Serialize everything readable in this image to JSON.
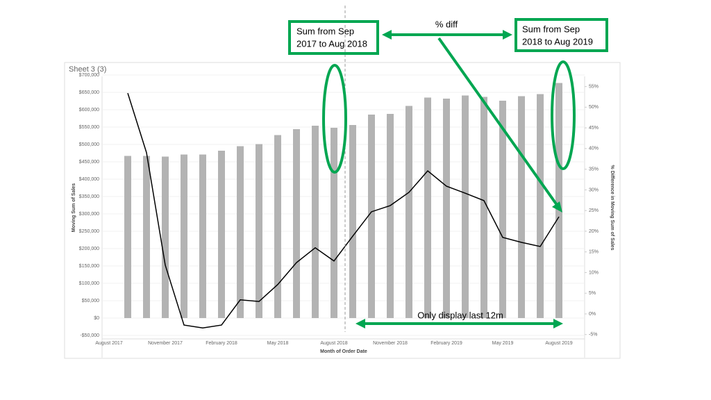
{
  "chart_data": {
    "type": "bar-line",
    "title": "Sheet 3 (3)",
    "x_label": "Month of Order Date",
    "y_label": "Moving Sum of Sales",
    "y2_label": "% Difference in Moving Sum of Sales",
    "categories": [
      "August 2017",
      null,
      null,
      "November 2017",
      null,
      null,
      "February 2018",
      null,
      null,
      "May 2018",
      null,
      null,
      "August 2018",
      null,
      null,
      "November 2018",
      null,
      null,
      "February 2019",
      null,
      null,
      "May 2019",
      null,
      null,
      "August 2019"
    ],
    "series": [
      {
        "name": "Moving Sum of Sales",
        "color": "#b3b3b3",
        "kind": "bar",
        "values": [
          null,
          467000,
          467000,
          465000,
          471000,
          471000,
          482000,
          495000,
          501000,
          527000,
          544000,
          554000,
          548000,
          556000,
          586000,
          588000,
          611000,
          635000,
          632000,
          641000,
          637000,
          626000,
          639000,
          645000,
          677000
        ]
      },
      {
        "name": "% Difference in Moving Sum of Sales",
        "color": "#000000",
        "kind": "line",
        "axis": "y2",
        "values": [
          null,
          53.4,
          39,
          11.8,
          -2.7,
          -3.4,
          -2.7,
          3.4,
          3.0,
          7.1,
          12.4,
          16.0,
          12.8,
          18.8,
          24.7,
          26.2,
          29.4,
          34.6,
          30.9,
          29.2,
          27.4,
          18.5,
          17.3,
          16.3,
          23.5
        ]
      }
    ],
    "ylim": [
      -60000,
      720000
    ],
    "yticks": [
      {
        "value": -50000,
        "label": "-$50,000"
      },
      {
        "value": 0,
        "label": "$0"
      },
      {
        "value": 50000,
        "label": "$50,000"
      },
      {
        "value": 100000,
        "label": "$100,000"
      },
      {
        "value": 150000,
        "label": "$150,000"
      },
      {
        "value": 200000,
        "label": "$200,000"
      },
      {
        "value": 250000,
        "label": "$250,000"
      },
      {
        "value": 300000,
        "label": "$300,000"
      },
      {
        "value": 350000,
        "label": "$350,000"
      },
      {
        "value": 400000,
        "label": "$400,000"
      },
      {
        "value": 450000,
        "label": "$450,000"
      },
      {
        "value": 500000,
        "label": "$500,000"
      },
      {
        "value": 550000,
        "label": "$550,000"
      },
      {
        "value": 600000,
        "label": "$600,000"
      },
      {
        "value": 650000,
        "label": "$650,000"
      },
      {
        "value": 700000,
        "label": "$700,000"
      }
    ],
    "y2lim": [
      -6.05,
      59.47
    ],
    "y2ticks": [
      {
        "value": -5,
        "label": "-5%"
      },
      {
        "value": 0,
        "label": "0%"
      },
      {
        "value": 5,
        "label": "5%"
      },
      {
        "value": 10,
        "label": "10%"
      },
      {
        "value": 15,
        "label": "15%"
      },
      {
        "value": 20,
        "label": "20%"
      },
      {
        "value": 25,
        "label": "25%"
      },
      {
        "value": 30,
        "label": "30%"
      },
      {
        "value": 35,
        "label": "35%"
      },
      {
        "value": 40,
        "label": "40%"
      },
      {
        "value": 45,
        "label": "45%"
      },
      {
        "value": 50,
        "label": "50%"
      },
      {
        "value": 55,
        "label": "55%"
      }
    ],
    "grid": true,
    "annotations": {
      "box_previous": [
        "Sum from Sep",
        "2017 to Aug 2018"
      ],
      "diff": "% diff",
      "box_current": [
        "Sum from Sep",
        "2018 to Aug 2019"
      ],
      "last12": "Only display last 12m"
    }
  }
}
